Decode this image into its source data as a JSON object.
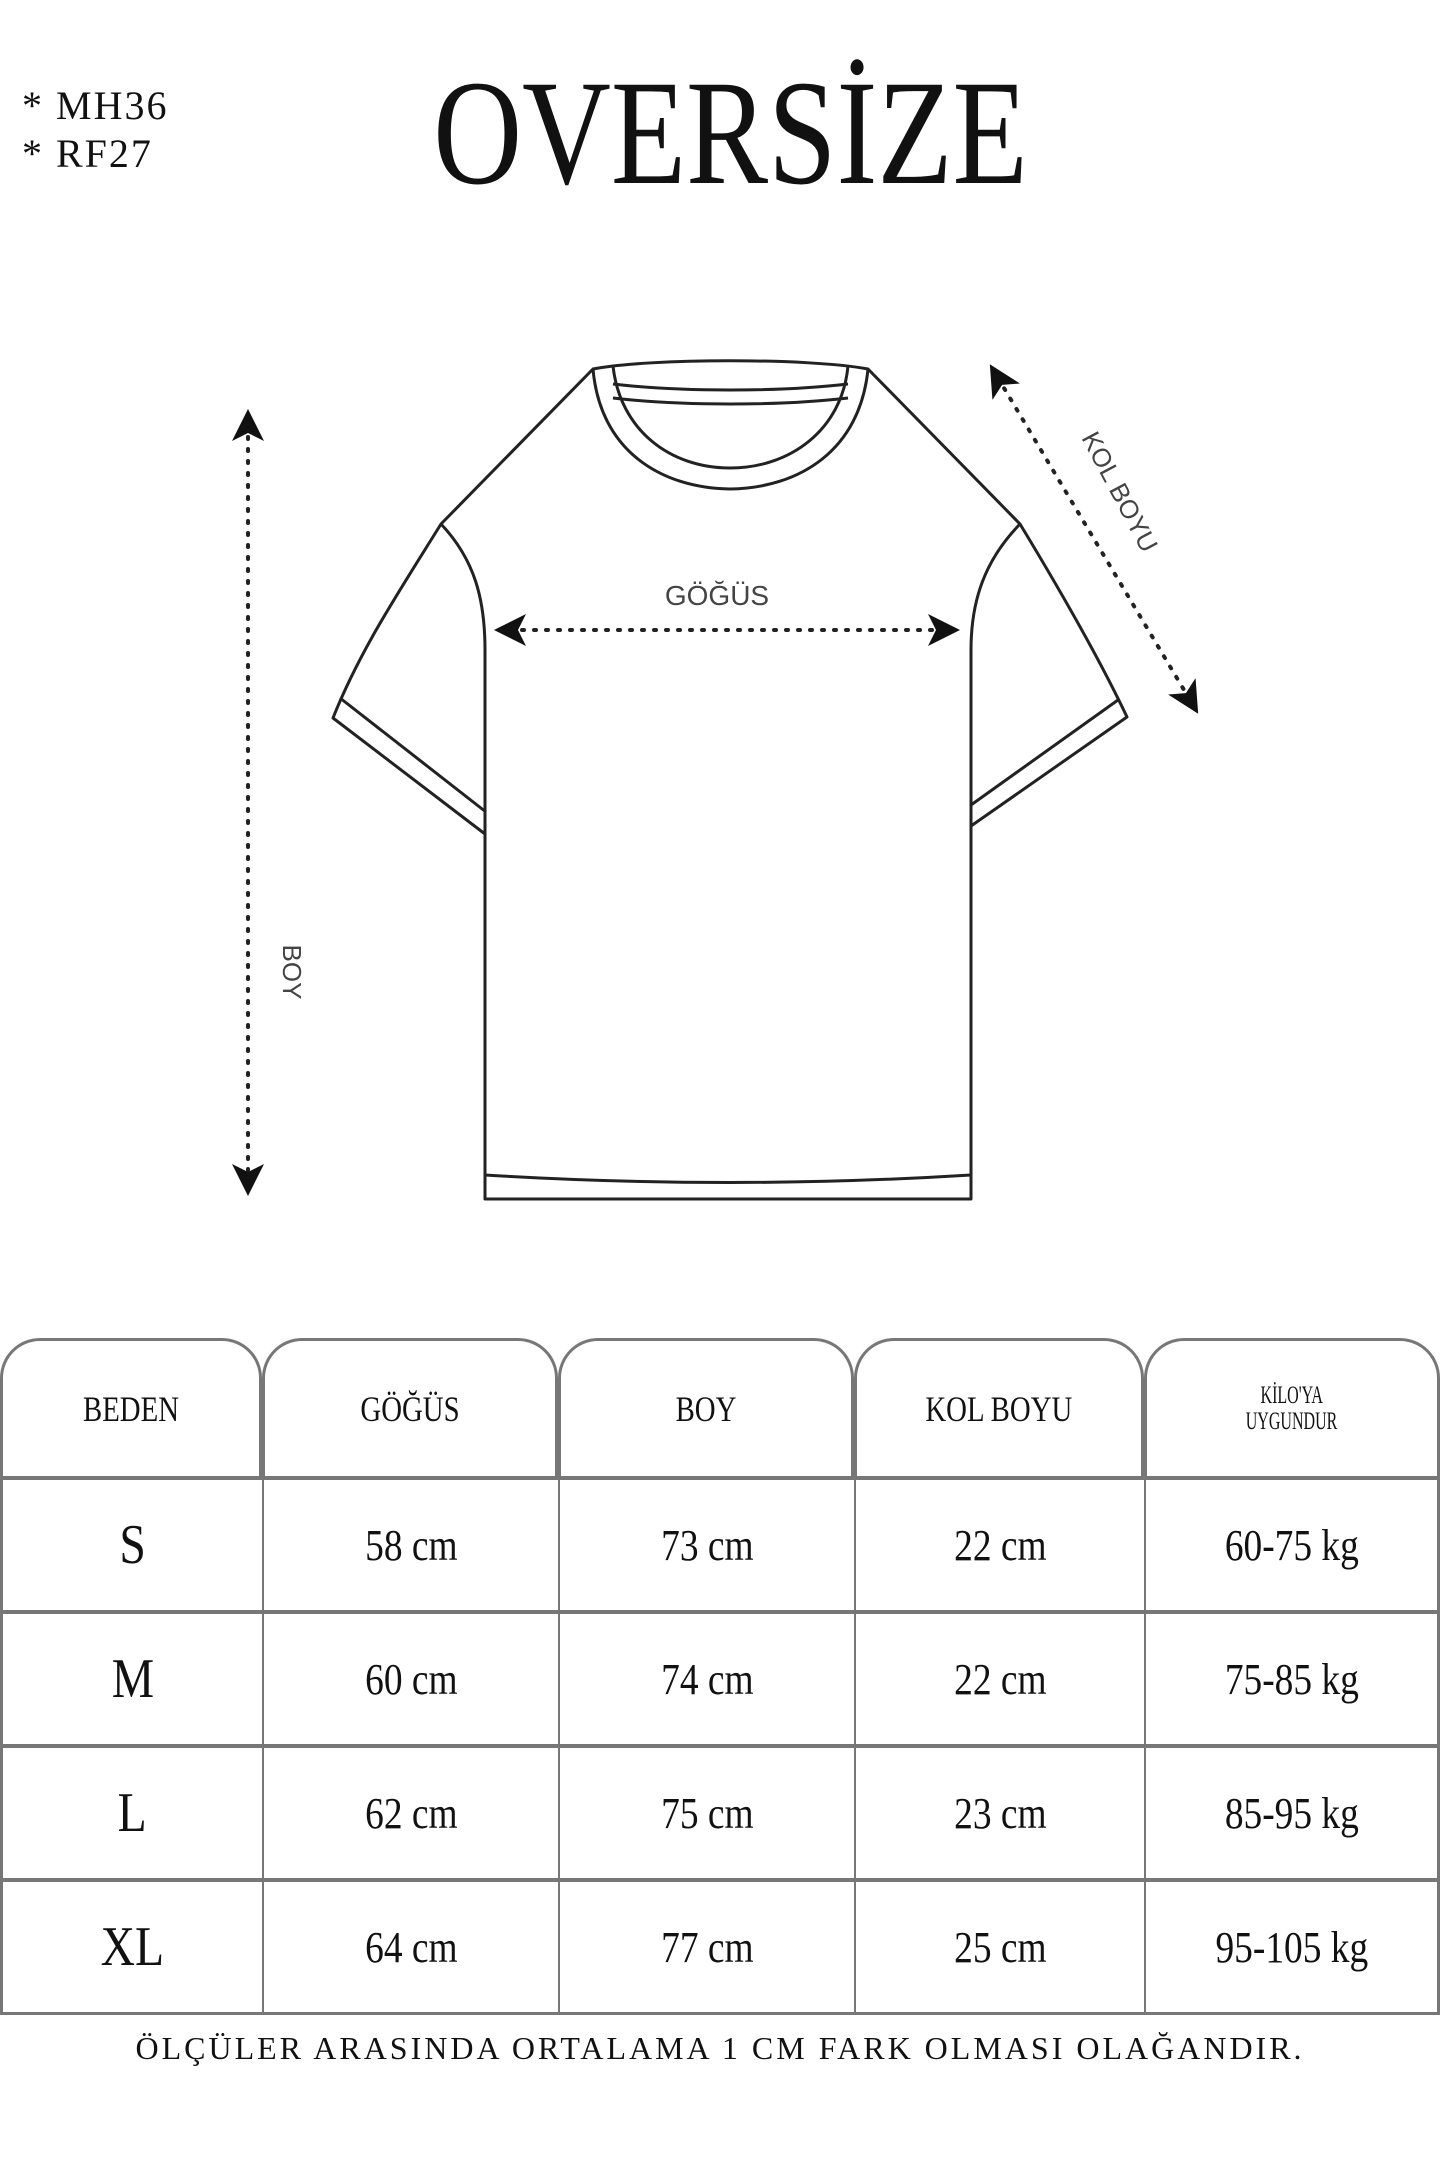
{
  "codes": [
    "* MH36",
    "* RF27"
  ],
  "title": "OVERSİZE",
  "diagram": {
    "boy": "BOY",
    "gogus": "GÖĞÜS",
    "kol_boyu": "KOL BOYU"
  },
  "table": {
    "headers": [
      "BEDEN",
      "GÖĞÜS",
      "BOY",
      "KOL BOYU",
      "KİLO'YA UYGUNDUR"
    ],
    "header_kilo_lines": [
      "KİLO'YA",
      "UYGUNDUR"
    ],
    "rows": [
      [
        "S",
        "58 cm",
        "73 cm",
        "22  cm",
        "60-75 kg"
      ],
      [
        "M",
        "60 cm",
        "74 cm",
        "22 cm",
        "75-85 kg"
      ],
      [
        "L",
        "62 cm",
        "75 cm",
        "23 cm",
        "85-95 kg"
      ],
      [
        "XL",
        "64 cm",
        "77 cm",
        "25 cm",
        "95-105 kg"
      ]
    ]
  },
  "footer": "ÖLÇÜLER ARASINDA ORTALAMA 1 CM FARK OLMASI OLAĞANDIR."
}
